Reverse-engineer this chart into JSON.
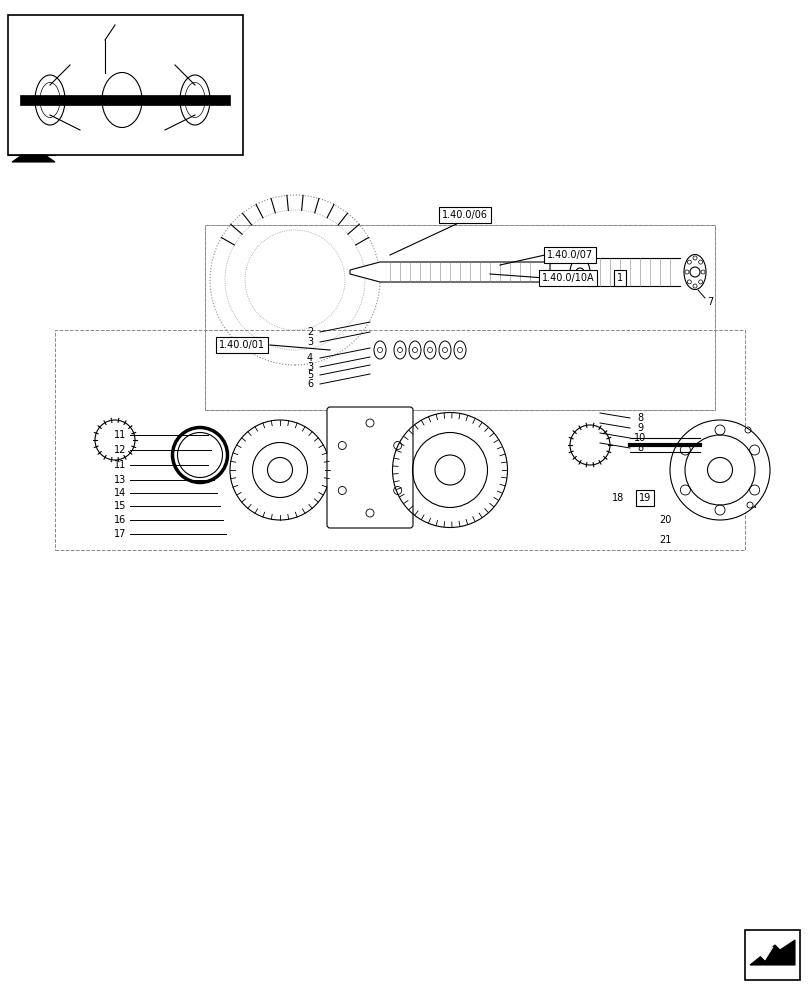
{
  "bg_color": "#ffffff",
  "line_color": "#000000",
  "gray_color": "#888888",
  "light_gray": "#cccccc",
  "labels": {
    "ref1": "1.40.0/06",
    "ref2": "1.40.0/07",
    "ref3": "1.40.0/10A",
    "ref4": "1.40.0/01",
    "num1": "1"
  },
  "part_numbers": [
    2,
    3,
    4,
    3,
    5,
    6,
    7,
    8,
    9,
    10,
    8,
    11,
    12,
    11,
    13,
    14,
    15,
    16,
    17,
    18,
    19,
    20,
    21
  ]
}
